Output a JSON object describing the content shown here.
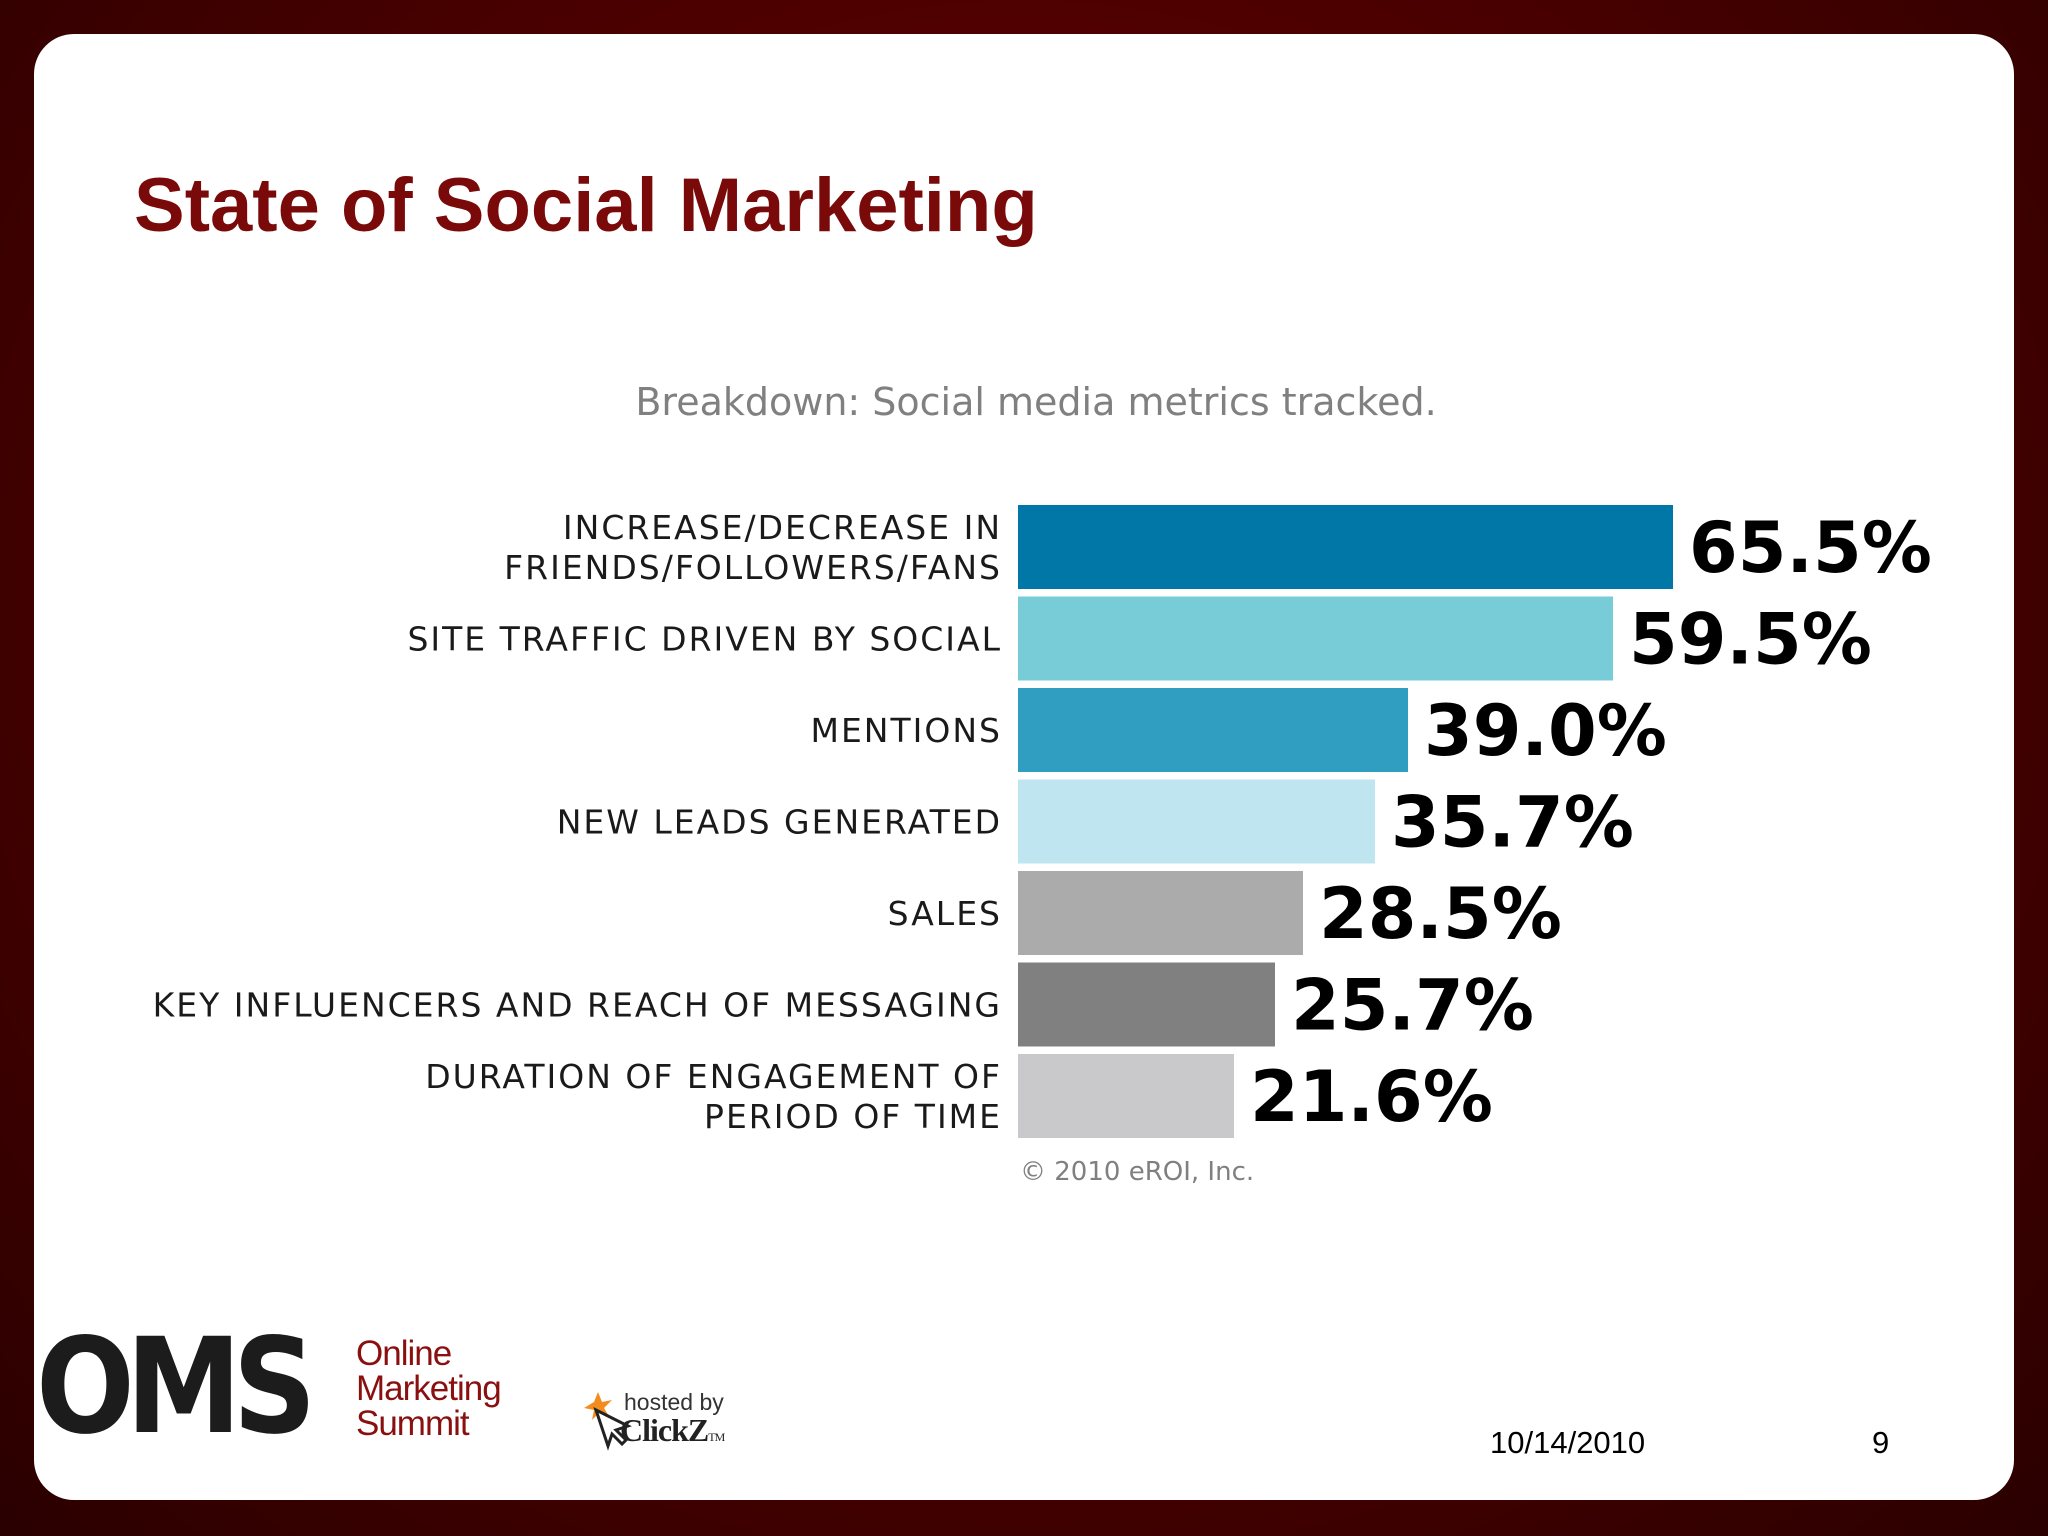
{
  "slide": {
    "title": "State of Social Marketing",
    "date": "10/14/2010",
    "page_number": "9"
  },
  "logo": {
    "abbrev": "OMS",
    "line1": "Online",
    "line2": "Marketing",
    "line3": "Summit",
    "hosted_by": "hosted by",
    "host": "ClickZ",
    "host_tm": "TM"
  },
  "chart_data": {
    "type": "bar",
    "orientation": "horizontal",
    "title": "Breakdown: Social media metrics tracked.",
    "categories": [
      [
        "INCREASE/DECREASE IN",
        "FRIENDS/FOLLOWERS/FANS"
      ],
      [
        "SITE TRAFFIC DRIVEN BY SOCIAL"
      ],
      [
        "MENTIONS"
      ],
      [
        "NEW LEADS GENERATED"
      ],
      [
        "SALES"
      ],
      [
        "KEY INFLUENCERS AND REACH OF MESSAGING"
      ],
      [
        "DURATION OF ENGAGEMENT OF",
        "PERIOD OF TIME"
      ]
    ],
    "values": [
      65.5,
      59.5,
      39.0,
      35.7,
      28.5,
      25.7,
      21.6
    ],
    "value_labels": [
      "65.5%",
      "59.5%",
      "39.0%",
      "35.7%",
      "28.5%",
      "25.7%",
      "21.6%"
    ],
    "colors": [
      "#0077a6",
      "#77ccd8",
      "#2f9ec0",
      "#bfe5f1",
      "#ababab",
      "#808080",
      "#c9c9cb"
    ],
    "source": "© 2010 eROI, Inc.",
    "xlim": [
      0,
      100
    ],
    "grid": false,
    "legend": "none"
  }
}
